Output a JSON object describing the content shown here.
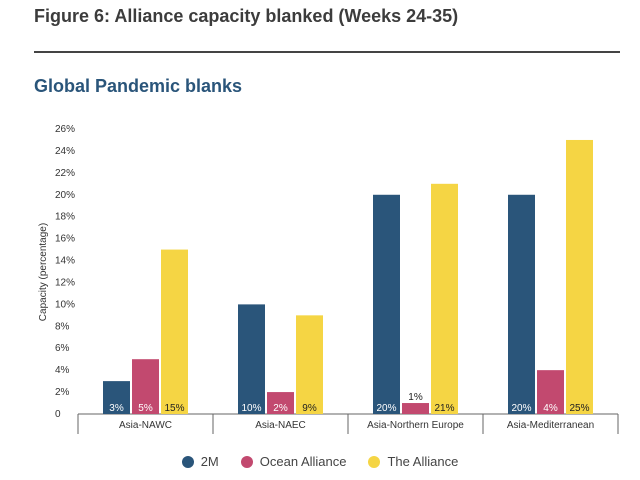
{
  "figure_title": "Figure 6: Alliance capacity blanked (Weeks 24-35)",
  "chart_data": {
    "type": "bar",
    "title": "Global Pandemic blanks",
    "ylabel": "Capacity (percentage)",
    "xlabel": "",
    "ylim": [
      0,
      26
    ],
    "yticks": [
      "0",
      "2%",
      "4%",
      "6%",
      "8%",
      "10%",
      "12%",
      "14%",
      "16%",
      "18%",
      "20%",
      "22%",
      "24%",
      "26%"
    ],
    "categories": [
      "Asia-NAWC",
      "Asia-NAEC",
      "Asia-Northern Europe",
      "Asia-Mediterranean"
    ],
    "series": [
      {
        "name": "2M",
        "color": "#2a557a",
        "values": [
          3,
          10,
          20,
          20
        ],
        "labels": [
          "3%",
          "10%",
          "20%",
          "20%"
        ]
      },
      {
        "name": "Ocean Alliance",
        "color": "#c2496f",
        "values": [
          5,
          2,
          1,
          4
        ],
        "labels": [
          "5%",
          "2%",
          "1%",
          "4%"
        ]
      },
      {
        "name": "The Alliance",
        "color": "#f5d544",
        "values": [
          15,
          9,
          21,
          25
        ],
        "labels": [
          "15%",
          "9%",
          "21%",
          "25%"
        ]
      }
    ],
    "grid": false,
    "legend_position": "bottom"
  }
}
